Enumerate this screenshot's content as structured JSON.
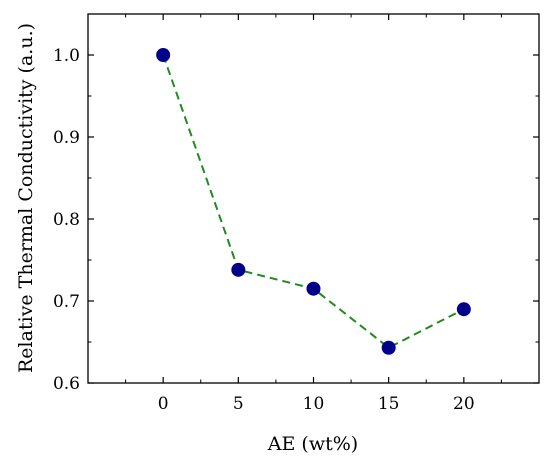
{
  "chart_data": {
    "type": "line",
    "xlabel": "AE (wt%)",
    "ylabel": "Relative Thermal Conductivity (a.u.)",
    "xlim": [
      -5,
      25
    ],
    "ylim": [
      0.6,
      1.05
    ],
    "x_ticks": [
      0,
      5,
      10,
      15,
      20
    ],
    "x_tick_labels": [
      "0",
      "5",
      "10",
      "15",
      "20"
    ],
    "y_ticks": [
      0.6,
      0.7,
      0.8,
      0.9,
      1.0
    ],
    "y_tick_labels": [
      "0.6",
      "0.7",
      "0.8",
      "0.9",
      "1.0"
    ],
    "grid": false,
    "series": [
      {
        "x": [
          0,
          5,
          10,
          15,
          20
        ],
        "y": [
          1.0,
          0.738,
          0.715,
          0.643,
          0.69
        ],
        "marker_color": "#00008B",
        "line_color": "#1E8C1E",
        "line_style": "dashed"
      }
    ]
  }
}
